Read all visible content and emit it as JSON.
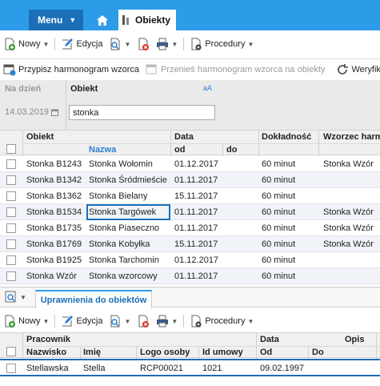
{
  "topbar": {
    "menu_label": "Menu",
    "tab_label": "Obiekty"
  },
  "toolbar1": {
    "new": "Nowy",
    "edit": "Edycja",
    "procedures": "Procedury"
  },
  "toolbar2": {
    "assign": "Przypisz harmonogram wzorca",
    "transfer": "Przenieś harmonogram wzorca na obiekty",
    "verify": "Weryfik"
  },
  "filter": {
    "date_label": "Na dzień",
    "date_value": "14.03.2019",
    "object_label": "Obiekt",
    "object_value": "stonka",
    "case_toggle": "aA"
  },
  "grid": {
    "headers": {
      "obiekt": "Obiekt",
      "nazwa": "Nazwa",
      "data": "Data",
      "od": "od",
      "do": "do",
      "dokladnosc": "Dokładność",
      "wzorzec": "Wzorzec harm"
    },
    "rows": [
      {
        "obiekt": "Stonka B1243",
        "nazwa": "Stonka Wołomin",
        "od": "01.12.2017",
        "dok": "60 minut",
        "wz": "Stonka Wzór"
      },
      {
        "obiekt": "Stonka B1342",
        "nazwa": "Stonka Śródmieście",
        "od": "01.11.2017",
        "dok": "60 minut",
        "wz": ""
      },
      {
        "obiekt": "Stonka B1362",
        "nazwa": "Stonka Bielany",
        "od": "15.11.2017",
        "dok": "60 minut",
        "wz": ""
      },
      {
        "obiekt": "Stonka B1534",
        "nazwa": "Stonka Targówek",
        "od": "01.11.2017",
        "dok": "60 minut",
        "wz": "Stonka Wzór"
      },
      {
        "obiekt": "Stonka B1735",
        "nazwa": "Stonka Piaseczno",
        "od": "01.11.2017",
        "dok": "60 minut",
        "wz": "Stonka Wzór"
      },
      {
        "obiekt": "Stonka B1769",
        "nazwa": "Stonka Kobyłka",
        "od": "15.11.2017",
        "dok": "60 minut",
        "wz": "Stonka Wzór"
      },
      {
        "obiekt": "Stonka B1925",
        "nazwa": "Stonka Tarchomin",
        "od": "01.12.2017",
        "dok": "60 minut",
        "wz": ""
      },
      {
        "obiekt": "Stonka Wzór",
        "nazwa": "Stonka wzorcowy",
        "od": "01.11.2017",
        "dok": "60 minut",
        "wz": ""
      }
    ]
  },
  "lower": {
    "tab_label": "Uprawnienia do obiektów",
    "new": "Nowy",
    "edit": "Edycja",
    "procedures": "Procedury"
  },
  "grid2": {
    "headers": {
      "pracownik": "Pracownik",
      "data": "Data",
      "opis": "Opis",
      "nazwisko": "Nazwisko",
      "imie": "Imię",
      "logo": "Logo osoby",
      "id": "Id umowy",
      "od": "Od",
      "do": "Do"
    },
    "rows": [
      {
        "nazwisko": "Stellawska",
        "imie": "Stella",
        "logo": "RCP00021",
        "id": "1021",
        "od": "09.02.1997"
      }
    ]
  },
  "colors": {
    "topbar": "#2d9ce8",
    "menu": "#1a6fb8",
    "accent": "#1a6fb8"
  }
}
